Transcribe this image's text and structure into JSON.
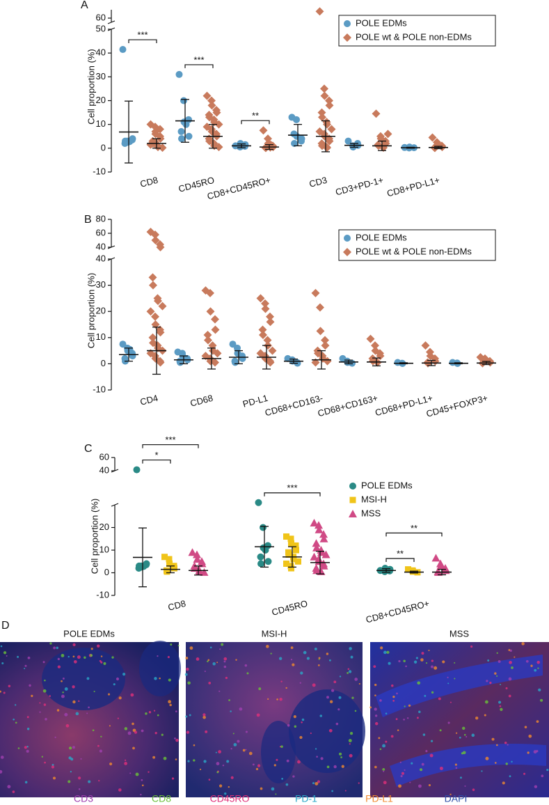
{
  "chart_data": [
    {
      "type": "dot",
      "panel_label": "A",
      "y_label": "Cell proportion (%)",
      "categories": [
        "CD8",
        "CD45RO",
        "CD8+CD45RO+",
        "CD3",
        "CD3+PD-1+",
        "CD8+PD-L1+"
      ],
      "ylim": [
        -10,
        50
      ],
      "yticks": [
        -10,
        0,
        10,
        20,
        30,
        40,
        50
      ],
      "ylim_upper": [
        55,
        70
      ],
      "yticks_upper": [
        60
      ],
      "legend": "upper right",
      "legend_frame": true,
      "series": [
        {
          "name": "POLE EDMs",
          "color": "#5b9bc4",
          "marker": "circle",
          "points": [
            [
              41.5,
              3,
              2.5,
              3.5,
              4,
              2,
              3,
              2.8
            ],
            [
              31,
              20,
              11,
              12,
              5,
              7,
              4,
              10
            ],
            [
              1,
              0.5,
              2,
              0.8,
              1.5
            ],
            [
              13,
              12,
              5,
              3,
              4,
              6,
              2
            ],
            [
              3,
              1,
              0.5,
              2,
              1.2
            ],
            [
              0.3,
              0.1,
              0.5,
              0.2
            ]
          ],
          "mean": [
            6.8,
            11.5,
            1,
            5.5,
            1.2,
            0.2
          ],
          "sd": [
            13,
            9,
            0.8,
            4.5,
            0.8,
            0.2
          ]
        },
        {
          "name": "POLE wt & POLE non-EDMs",
          "color": "#c87a5c",
          "marker": "diamond",
          "points": [
            [
              10,
              9,
              7,
              5,
              4,
              3,
              2,
              1,
              0.5,
              0.2,
              1.5,
              2.5,
              6,
              8
            ],
            [
              22,
              20,
              18,
              16,
              15,
              14,
              13,
              12,
              11,
              10,
              9,
              8,
              7,
              6,
              5,
              4,
              3,
              2,
              1,
              0.5
            ],
            [
              7.5,
              4,
              2,
              1,
              0.5,
              0.2,
              0.1,
              0.3,
              1.5
            ],
            [
              68,
              25,
              22,
              20,
              18,
              15,
              13,
              11,
              10,
              8,
              7,
              6,
              5,
              4,
              3,
              2,
              1,
              0.5,
              0.2
            ],
            [
              14.5,
              5,
              4,
              3,
              2,
              1.5,
              1,
              0.5,
              0.2,
              6
            ],
            [
              4.5,
              2.5,
              1.5,
              1,
              0.5,
              0.2,
              0.1
            ]
          ],
          "mean": [
            2,
            5,
            0.5,
            5,
            1,
            0.3
          ],
          "sd": [
            2,
            5,
            1,
            6.5,
            2,
            0.5
          ]
        }
      ],
      "annotations": [
        {
          "category": "CD8",
          "pair": [
            "POLE EDMs",
            "POLE wt & POLE non-EDMs"
          ],
          "label": "***"
        },
        {
          "category": "CD45RO",
          "pair": [
            "POLE EDMs",
            "POLE wt & POLE non-EDMs"
          ],
          "label": "***"
        },
        {
          "category": "CD8+CD45RO+",
          "pair": [
            "POLE EDMs",
            "POLE wt & POLE non-EDMs"
          ],
          "label": "**"
        }
      ]
    },
    {
      "type": "dot",
      "panel_label": "B",
      "y_label": "Cell proportion (%)",
      "categories": [
        "CD4",
        "CD68",
        "PD-L1",
        "CD68+CD163-",
        "CD68+CD163+",
        "CD68+PD-L1+",
        "CD45+FOXP3+"
      ],
      "ylim": [
        -10,
        40
      ],
      "yticks": [
        -10,
        0,
        10,
        20,
        30,
        40
      ],
      "ylim_upper": [
        40,
        80
      ],
      "yticks_upper": [
        40,
        60,
        80
      ],
      "legend": "upper right",
      "legend_frame": true,
      "series": [
        {
          "name": "POLE EDMs",
          "color": "#5b9bc4",
          "marker": "circle",
          "points": [
            [
              7.5,
              6,
              5,
              4,
              3,
              2,
              1,
              5.5
            ],
            [
              4.5,
              4,
              3,
              2,
              1.5,
              1,
              0.5
            ],
            [
              7.5,
              6,
              4,
              3,
              2,
              1,
              0.5
            ],
            [
              2,
              1.5,
              1,
              0.5,
              0.2
            ],
            [
              2,
              1,
              0.5,
              0.2
            ],
            [
              0.5,
              0.2,
              0.1
            ],
            [
              0.5,
              0.3,
              0.1
            ]
          ],
          "mean": [
            3.5,
            1.5,
            2.5,
            1,
            0.7,
            0.2,
            0.2
          ],
          "sd": [
            2.5,
            1.5,
            2.5,
            0.8,
            0.7,
            0.2,
            0.2
          ]
        },
        {
          "name": "POLE wt & POLE non-EDMs",
          "color": "#c87a5c",
          "marker": "diamond",
          "points": [
            [
              62,
              58,
              50,
              44,
              40,
              33,
              30,
              25,
              24,
              22,
              20,
              18,
              15,
              13,
              12,
              10,
              8,
              7,
              6,
              5,
              4,
              3,
              2,
              1,
              0.5
            ],
            [
              28,
              27,
              20,
              17,
              13,
              11,
              9,
              7,
              5,
              4,
              3,
              2,
              1,
              0.5
            ],
            [
              25,
              23,
              21,
              18,
              16,
              13,
              11,
              9,
              7,
              5,
              4,
              3,
              2,
              1,
              0.5
            ],
            [
              27,
              21.5,
              12.5,
              9,
              7,
              5,
              4,
              3,
              2,
              1,
              0.5
            ],
            [
              9.5,
              7,
              5,
              4,
              3,
              2,
              1,
              0.5
            ],
            [
              7,
              4.5,
              3,
              2,
              1,
              0.5,
              0.2
            ],
            [
              2.5,
              2,
              1.5,
              1,
              0.5,
              0.2
            ]
          ],
          "mean": [
            5,
            2,
            2.5,
            1.5,
            0.7,
            0.3,
            0.3
          ],
          "sd": [
            9,
            4,
            4.5,
            3.5,
            1.5,
            1,
            0.6
          ]
        }
      ],
      "annotations": []
    },
    {
      "type": "dot",
      "panel_label": "C",
      "y_label": "Cell proportion (%)",
      "categories": [
        "CD8",
        "CD45RO",
        "CD8+CD45RO+"
      ],
      "ylim": [
        -10,
        30
      ],
      "yticks": [
        -10,
        0,
        10,
        20
      ],
      "ylim_upper": [
        40,
        60
      ],
      "yticks_upper": [
        40,
        60
      ],
      "legend": "upper right",
      "legend_frame": false,
      "series": [
        {
          "name": "POLE EDMs",
          "color": "#2a8a86",
          "marker": "circle",
          "points": [
            [
              41.5,
              3,
              2.5,
              3.5,
              4,
              2,
              3,
              2.8
            ],
            [
              31,
              20,
              11,
              12,
              5,
              7,
              4,
              10
            ],
            [
              1,
              0.5,
              2,
              0.8,
              1.5
            ]
          ],
          "mean": [
            6.8,
            11.5,
            1
          ],
          "sd": [
            13,
            9,
            0.8
          ]
        },
        {
          "name": "MSI-H",
          "color": "#f0c419",
          "marker": "square",
          "points": [
            [
              7,
              6,
              4,
              3,
              2,
              1,
              0.5
            ],
            [
              16,
              15,
              13,
              12,
              10,
              9,
              8,
              7,
              6,
              5,
              4,
              3,
              2
            ],
            [
              1.5,
              1,
              0.5,
              0.2
            ]
          ],
          "mean": [
            1.5,
            7,
            0.3
          ],
          "sd": [
            1.5,
            4.5,
            0.4
          ]
        },
        {
          "name": "MSS",
          "color": "#d04a85",
          "marker": "triangle",
          "points": [
            [
              9,
              8,
              6,
              5,
              4,
              3,
              2,
              1,
              0.5,
              0.2
            ],
            [
              22,
              21,
              19,
              17,
              15,
              13,
              11,
              10,
              9,
              8,
              7,
              6,
              5,
              4,
              3,
              2,
              1,
              0.5
            ],
            [
              6.5,
              4,
              3,
              2,
              1,
              0.5,
              0.2
            ]
          ],
          "mean": [
            1,
            4.5,
            0.3
          ],
          "sd": [
            2,
            5,
            1.2
          ]
        }
      ],
      "annotations": [
        {
          "category": "CD8",
          "pair": [
            "POLE EDMs",
            "MSI-H"
          ],
          "label": "*"
        },
        {
          "category": "CD8",
          "pair": [
            "POLE EDMs",
            "MSS"
          ],
          "label": "***"
        },
        {
          "category": "CD45RO",
          "pair": [
            "POLE EDMs",
            "MSS"
          ],
          "label": "***"
        },
        {
          "category": "CD8+CD45RO+",
          "pair": [
            "POLE EDMs",
            "MSI-H"
          ],
          "label": "**"
        },
        {
          "category": "CD8+CD45RO+",
          "pair": [
            "POLE EDMs",
            "MSS"
          ],
          "label": "**"
        }
      ]
    }
  ],
  "image_panel": {
    "panel_label": "D",
    "images": [
      {
        "title": "POLE EDMs"
      },
      {
        "title": "MSI-H"
      },
      {
        "title": "MSS"
      }
    ],
    "channels": [
      {
        "name": "CD3",
        "color": "#a040b0"
      },
      {
        "name": "CD8",
        "color": "#6ac03a"
      },
      {
        "name": "CD45RO",
        "color": "#e0307a"
      },
      {
        "name": "PD-1",
        "color": "#2aa8c8"
      },
      {
        "name": "PD-L1",
        "color": "#f08a30"
      },
      {
        "name": "DAPI",
        "color": "#3050a8"
      }
    ]
  }
}
